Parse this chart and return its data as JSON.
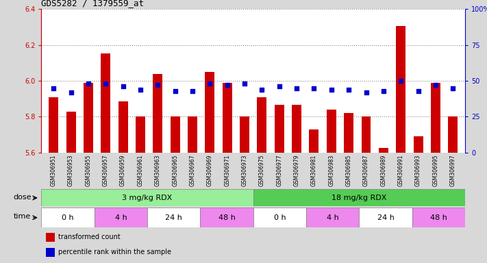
{
  "title": "GDS5282 / 1379559_at",
  "samples": [
    "GSM306951",
    "GSM306953",
    "GSM306955",
    "GSM306957",
    "GSM306959",
    "GSM306961",
    "GSM306963",
    "GSM306965",
    "GSM306967",
    "GSM306969",
    "GSM306971",
    "GSM306973",
    "GSM306975",
    "GSM306977",
    "GSM306979",
    "GSM306981",
    "GSM306983",
    "GSM306985",
    "GSM306987",
    "GSM306989",
    "GSM306991",
    "GSM306993",
    "GSM306995",
    "GSM306997"
  ],
  "bar_values": [
    5.91,
    5.83,
    5.99,
    6.155,
    5.885,
    5.8,
    6.04,
    5.8,
    5.8,
    6.05,
    5.99,
    5.8,
    5.91,
    5.865,
    5.865,
    5.73,
    5.84,
    5.82,
    5.8,
    5.625,
    6.305,
    5.69,
    5.99,
    5.8
  ],
  "percentile_values": [
    45,
    42,
    48,
    48,
    46,
    44,
    47,
    43,
    43,
    48,
    47,
    48,
    44,
    46,
    45,
    45,
    44,
    44,
    42,
    43,
    50,
    43,
    47,
    45
  ],
  "ymin": 5.6,
  "ymax": 6.4,
  "yticks": [
    5.6,
    5.8,
    6.0,
    6.2,
    6.4
  ],
  "y2min": 0,
  "y2max": 100,
  "y2ticks": [
    0,
    25,
    50,
    75,
    100
  ],
  "y2ticklabels": [
    "0",
    "25",
    "50",
    "75",
    "100%"
  ],
  "bar_color": "#cc0000",
  "dot_color": "#0000cc",
  "bar_width": 0.55,
  "dose_groups": [
    {
      "label": "3 mg/kg RDX",
      "start": 0,
      "end": 12,
      "color": "#99ee99"
    },
    {
      "label": "18 mg/kg RDX",
      "start": 12,
      "end": 24,
      "color": "#55cc55"
    }
  ],
  "time_groups": [
    {
      "label": "0 h",
      "start": 0,
      "end": 3,
      "color": "#ffffff"
    },
    {
      "label": "4 h",
      "start": 3,
      "end": 6,
      "color": "#ee88ee"
    },
    {
      "label": "24 h",
      "start": 6,
      "end": 9,
      "color": "#ffffff"
    },
    {
      "label": "48 h",
      "start": 9,
      "end": 12,
      "color": "#ee88ee"
    },
    {
      "label": "0 h",
      "start": 12,
      "end": 15,
      "color": "#ffffff"
    },
    {
      "label": "4 h",
      "start": 15,
      "end": 18,
      "color": "#ee88ee"
    },
    {
      "label": "24 h",
      "start": 18,
      "end": 21,
      "color": "#ffffff"
    },
    {
      "label": "48 h",
      "start": 21,
      "end": 24,
      "color": "#ee88ee"
    }
  ],
  "grid_color": "#888888",
  "bg_color": "#d8d8d8",
  "plot_bg": "#ffffff",
  "xtick_bg": "#cccccc",
  "legend_items": [
    {
      "color": "#cc0000",
      "label": "transformed count"
    },
    {
      "color": "#0000cc",
      "label": "percentile rank within the sample"
    }
  ]
}
